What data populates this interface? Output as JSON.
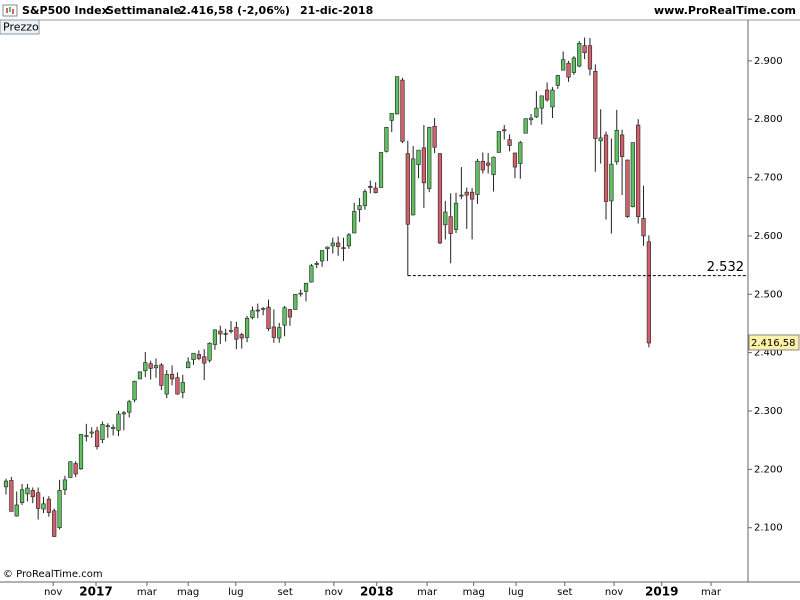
{
  "header": {
    "symbol": "S&P500 Index",
    "period": "Settimanale",
    "quote": "2.416,58 (-2,06%)",
    "date": "21-dic-2018",
    "site": "www.ProRealTime.com"
  },
  "panel_label": "Prezzo",
  "copyright": "© ProRealTime.com",
  "chart_data": {
    "type": "candlestick",
    "up_color": "#5fc05f",
    "down_color": "#d0606c",
    "ylim": [
      2007,
      2970
    ],
    "yticks": [
      {
        "value": 2100,
        "label": "2.100"
      },
      {
        "value": 2200,
        "label": "2.200"
      },
      {
        "value": 2300,
        "label": "2.300"
      },
      {
        "value": 2400,
        "label": "2.400"
      },
      {
        "value": 2500,
        "label": "2.500"
      },
      {
        "value": 2600,
        "label": "2.600"
      },
      {
        "value": 2700,
        "label": "2.700"
      },
      {
        "value": 2800,
        "label": "2.800"
      },
      {
        "value": 2900,
        "label": "2.900"
      }
    ],
    "xlim": [
      -1.12,
      138.5
    ],
    "xticks": [
      {
        "value": 8.8,
        "label": "nov"
      },
      {
        "value": 16.8,
        "label": "2017"
      },
      {
        "value": 26.3,
        "label": "mar"
      },
      {
        "value": 34.0,
        "label": "mag"
      },
      {
        "value": 42.9,
        "label": "lug"
      },
      {
        "value": 52.1,
        "label": "set"
      },
      {
        "value": 61.2,
        "label": "nov"
      },
      {
        "value": 69.2,
        "label": "2018"
      },
      {
        "value": 78.6,
        "label": "mar"
      },
      {
        "value": 87.3,
        "label": "mag"
      },
      {
        "value": 95.2,
        "label": "lug"
      },
      {
        "value": 104.3,
        "label": "set"
      },
      {
        "value": 113.5,
        "label": "nov"
      },
      {
        "value": 122.4,
        "label": "2019"
      },
      {
        "value": 131.6,
        "label": "mar"
      }
    ],
    "open": [
      2170,
      2181,
      2120,
      2143,
      2158,
      2164,
      2160,
      2132,
      2149,
      2129,
      2100,
      2165,
      2186,
      2210,
      2201,
      2258,
      2262,
      2266,
      2251,
      2273,
      2270,
      2267,
      2295,
      2298,
      2319,
      2355,
      2369,
      2381,
      2374,
      2379,
      2329,
      2363,
      2357,
      2332,
      2374,
      2388,
      2397,
      2393,
      2387,
      2414,
      2437,
      2432,
      2437,
      2443,
      2431,
      2426,
      2460,
      2473,
      2475,
      2478,
      2444,
      2425,
      2447,
      2474,
      2474,
      2502,
      2505,
      2521,
      2551,
      2557,
      2578,
      2583,
      2588,
      2580,
      2583,
      2605,
      2645,
      2652,
      2685,
      2682,
      2683,
      2745,
      2798,
      2809,
      2867,
      2741,
      2636,
      2722,
      2751,
      2681,
      2788,
      2741,
      2619,
      2633,
      2611,
      2670,
      2675,
      2675,
      2671,
      2728,
      2725,
      2705,
      2743,
      2782,
      2765,
      2742,
      2724,
      2776,
      2799,
      2804,
      2819,
      2850,
      2821,
      2858,
      2884,
      2896,
      2880,
      2891,
      2926,
      2926,
      2882,
      2763,
      2773,
      2660,
      2727,
      2773,
      2730,
      2650,
      2790,
      2630,
      2590
    ],
    "high": [
      2184,
      2187,
      2162,
      2175,
      2175,
      2169,
      2169,
      2153,
      2154,
      2133,
      2182,
      2189,
      2214,
      2214,
      2260,
      2278,
      2272,
      2273,
      2282,
      2279,
      2277,
      2300,
      2300,
      2319,
      2352,
      2368,
      2401,
      2386,
      2390,
      2382,
      2370,
      2378,
      2366,
      2362,
      2392,
      2399,
      2404,
      2406,
      2418,
      2440,
      2446,
      2441,
      2454,
      2453,
      2434,
      2463,
      2479,
      2484,
      2478,
      2491,
      2474,
      2451,
      2480,
      2475,
      2500,
      2508,
      2519,
      2552,
      2557,
      2575,
      2582,
      2597,
      2599,
      2597,
      2605,
      2657,
      2665,
      2680,
      2695,
      2692,
      2744,
      2787,
      2810,
      2873,
      2871,
      2763,
      2754,
      2747,
      2790,
      2787,
      2802,
      2742,
      2660,
      2673,
      2674,
      2718,
      2683,
      2682,
      2732,
      2743,
      2742,
      2736,
      2779,
      2790,
      2774,
      2743,
      2763,
      2801,
      2809,
      2848,
      2840,
      2863,
      2855,
      2876,
      2916,
      2900,
      2908,
      2934,
      2940,
      2939,
      2894,
      2817,
      2779,
      2767,
      2816,
      2782,
      2731,
      2760,
      2800,
      2686,
      2601
    ],
    "low": [
      2157,
      2128,
      2119,
      2139,
      2145,
      2142,
      2114,
      2125,
      2119,
      2084,
      2097,
      2156,
      2186,
      2187,
      2199,
      2248,
      2254,
      2234,
      2245,
      2254,
      2258,
      2257,
      2267,
      2289,
      2315,
      2355,
      2358,
      2354,
      2357,
      2336,
      2322,
      2344,
      2328,
      2322,
      2374,
      2379,
      2387,
      2353,
      2383,
      2405,
      2415,
      2419,
      2433,
      2406,
      2407,
      2418,
      2457,
      2459,
      2464,
      2437,
      2417,
      2417,
      2428,
      2446,
      2474,
      2496,
      2488,
      2520,
      2545,
      2547,
      2557,
      2570,
      2566,
      2557,
      2578,
      2605,
      2624,
      2645,
      2673,
      2673,
      2683,
      2743,
      2778,
      2808,
      2759,
      2532,
      2635,
      2699,
      2648,
      2675,
      2742,
      2586,
      2594,
      2553,
      2605,
      2663,
      2612,
      2594,
      2655,
      2707,
      2707,
      2676,
      2743,
      2765,
      2745,
      2699,
      2698,
      2776,
      2790,
      2802,
      2791,
      2830,
      2802,
      2852,
      2884,
      2864,
      2876,
      2889,
      2903,
      2875,
      2710,
      2724,
      2628,
      2604,
      2722,
      2670,
      2631,
      2649,
      2621,
      2583,
      2409
    ],
    "close": [
      2180,
      2128,
      2139,
      2165,
      2168,
      2153,
      2133,
      2141,
      2126,
      2085,
      2164,
      2182,
      2213,
      2192,
      2260,
      2258,
      2264,
      2239,
      2277,
      2275,
      2272,
      2295,
      2297,
      2316,
      2351,
      2367,
      2383,
      2373,
      2378,
      2344,
      2363,
      2355,
      2329,
      2349,
      2384,
      2399,
      2390,
      2382,
      2416,
      2439,
      2432,
      2433,
      2438,
      2423,
      2425,
      2459,
      2472,
      2472,
      2476,
      2441,
      2426,
      2443,
      2477,
      2461,
      2500,
      2502,
      2519,
      2549,
      2553,
      2575,
      2581,
      2588,
      2582,
      2579,
      2602,
      2642,
      2652,
      2676,
      2683,
      2674,
      2743,
      2786,
      2810,
      2873,
      2762,
      2620,
      2732,
      2747,
      2691,
      2786,
      2752,
      2588,
      2641,
      2604,
      2656,
      2670,
      2670,
      2663,
      2728,
      2713,
      2721,
      2735,
      2779,
      2780,
      2755,
      2718,
      2760,
      2801,
      2802,
      2819,
      2840,
      2833,
      2850,
      2875,
      2902,
      2872,
      2905,
      2930,
      2914,
      2886,
      2767,
      2768,
      2659,
      2723,
      2781,
      2736,
      2633,
      2760,
      2633,
      2600,
      2416.58
    ],
    "annotation": {
      "value": 2532,
      "label": "2.532"
    },
    "last_price": {
      "value": 2416.58,
      "label": "2.416,58"
    }
  }
}
